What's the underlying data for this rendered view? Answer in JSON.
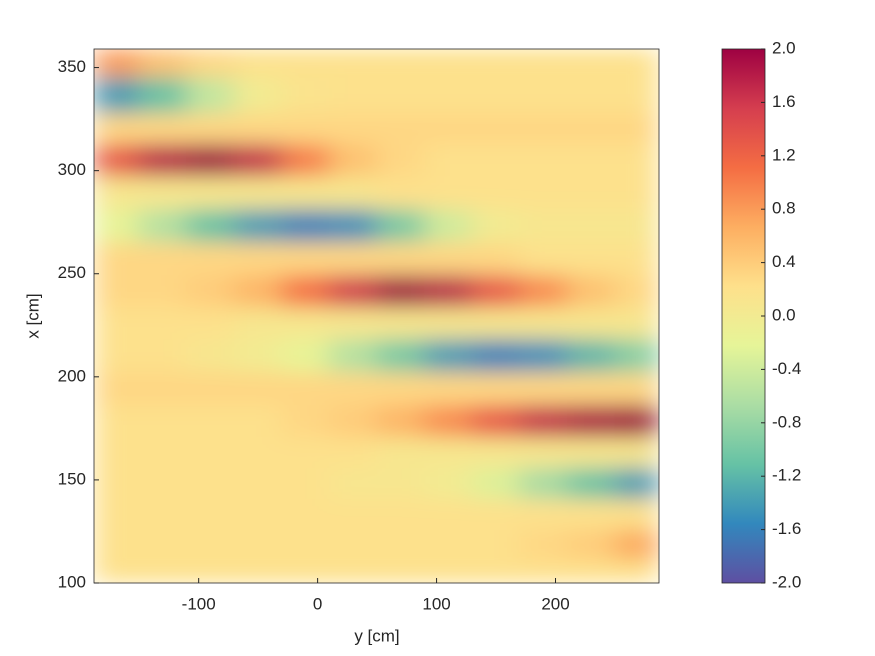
{
  "chart_data": {
    "type": "heatmap",
    "xlabel": "y [cm]",
    "ylabel": "x [cm]",
    "xlim": [
      -188,
      287
    ],
    "ylim": [
      100,
      359
    ],
    "xticks": [
      -100,
      0,
      100,
      200
    ],
    "yticks": [
      100,
      150,
      200,
      250,
      300,
      350
    ],
    "x": [
      -170,
      -130,
      -90,
      -50,
      -10,
      30,
      70,
      110,
      150,
      190,
      230,
      270
    ],
    "y": [
      355,
      335,
      320,
      305,
      289,
      273,
      257,
      241,
      226,
      210,
      194,
      178,
      163,
      148,
      133,
      118,
      104
    ],
    "z": [
      [
        0.8,
        0.5,
        0.3,
        0.2,
        0.2,
        0.2,
        0.2,
        0.2,
        0.2,
        0.2,
        0.2,
        0.2
      ],
      [
        -1.4,
        -1.1,
        -0.5,
        0.0,
        0.15,
        0.2,
        0.2,
        0.2,
        0.2,
        0.2,
        0.2,
        0.2
      ],
      [
        0.3,
        0.3,
        0.3,
        0.3,
        0.3,
        0.3,
        0.3,
        0.3,
        0.3,
        0.3,
        0.3,
        0.3
      ],
      [
        1.3,
        1.8,
        2.0,
        1.7,
        1.0,
        0.5,
        0.3,
        0.2,
        0.2,
        0.2,
        0.2,
        0.2
      ],
      [
        0.1,
        0.1,
        0.1,
        0.1,
        0.1,
        0.1,
        0.2,
        0.2,
        0.2,
        0.2,
        0.2,
        0.2
      ],
      [
        -0.2,
        -0.6,
        -1.1,
        -1.4,
        -1.6,
        -1.5,
        -1.0,
        -0.4,
        0.0,
        0.1,
        0.1,
        0.1
      ],
      [
        0.3,
        0.3,
        0.3,
        0.3,
        0.3,
        0.3,
        0.3,
        0.3,
        0.3,
        0.2,
        0.2,
        0.2
      ],
      [
        0.3,
        0.3,
        0.4,
        0.6,
        1.1,
        1.6,
        2.0,
        1.8,
        1.3,
        0.9,
        0.5,
        0.3
      ],
      [
        0.2,
        0.2,
        0.2,
        0.1,
        0.1,
        0.1,
        0.1,
        0.1,
        0.1,
        0.1,
        0.1,
        0.1
      ],
      [
        0.2,
        0.2,
        0.1,
        0.0,
        -0.2,
        -0.6,
        -1.0,
        -1.4,
        -1.6,
        -1.5,
        -1.2,
        -0.9
      ],
      [
        0.3,
        0.3,
        0.3,
        0.3,
        0.3,
        0.3,
        0.3,
        0.3,
        0.3,
        0.3,
        0.3,
        0.3
      ],
      [
        0.2,
        0.2,
        0.2,
        0.2,
        0.3,
        0.4,
        0.6,
        0.9,
        1.3,
        1.7,
        1.9,
        2.0
      ],
      [
        0.2,
        0.2,
        0.2,
        0.2,
        0.2,
        0.2,
        0.1,
        0.1,
        0.1,
        0.1,
        0.1,
        0.1
      ],
      [
        0.2,
        0.2,
        0.2,
        0.2,
        0.2,
        0.1,
        0.1,
        0.0,
        -0.3,
        -0.7,
        -1.1,
        -1.4
      ],
      [
        0.2,
        0.2,
        0.2,
        0.2,
        0.2,
        0.2,
        0.2,
        0.2,
        0.2,
        0.2,
        0.2,
        0.2
      ],
      [
        0.2,
        0.2,
        0.2,
        0.2,
        0.2,
        0.2,
        0.2,
        0.2,
        0.2,
        0.3,
        0.4,
        0.7
      ],
      [
        0.2,
        0.2,
        0.2,
        0.2,
        0.2,
        0.2,
        0.2,
        0.2,
        0.2,
        0.2,
        0.2,
        0.2
      ]
    ],
    "zlim": [
      -2,
      2
    ],
    "zticks": [
      {
        "value": -2,
        "label": "-2.0"
      },
      {
        "value": -1.6,
        "label": "-1.6"
      },
      {
        "value": -1.2,
        "label": "-1.2"
      },
      {
        "value": -0.8,
        "label": "-0.8"
      },
      {
        "value": -0.4,
        "label": "-0.4"
      },
      {
        "value": 0,
        "label": "0.0"
      },
      {
        "value": 0.4,
        "label": "0.4"
      },
      {
        "value": 0.8,
        "label": "0.8"
      },
      {
        "value": 1.2,
        "label": "1.2"
      },
      {
        "value": 1.6,
        "label": "1.6"
      },
      {
        "value": 2,
        "label": "2.0"
      }
    ],
    "colormap": [
      "#5e4fa2",
      "#3288bd",
      "#66c2a5",
      "#abdda4",
      "#e6f598",
      "#fee08b",
      "#fdae61",
      "#f46d43",
      "#d53e4f",
      "#9e0142"
    ]
  }
}
